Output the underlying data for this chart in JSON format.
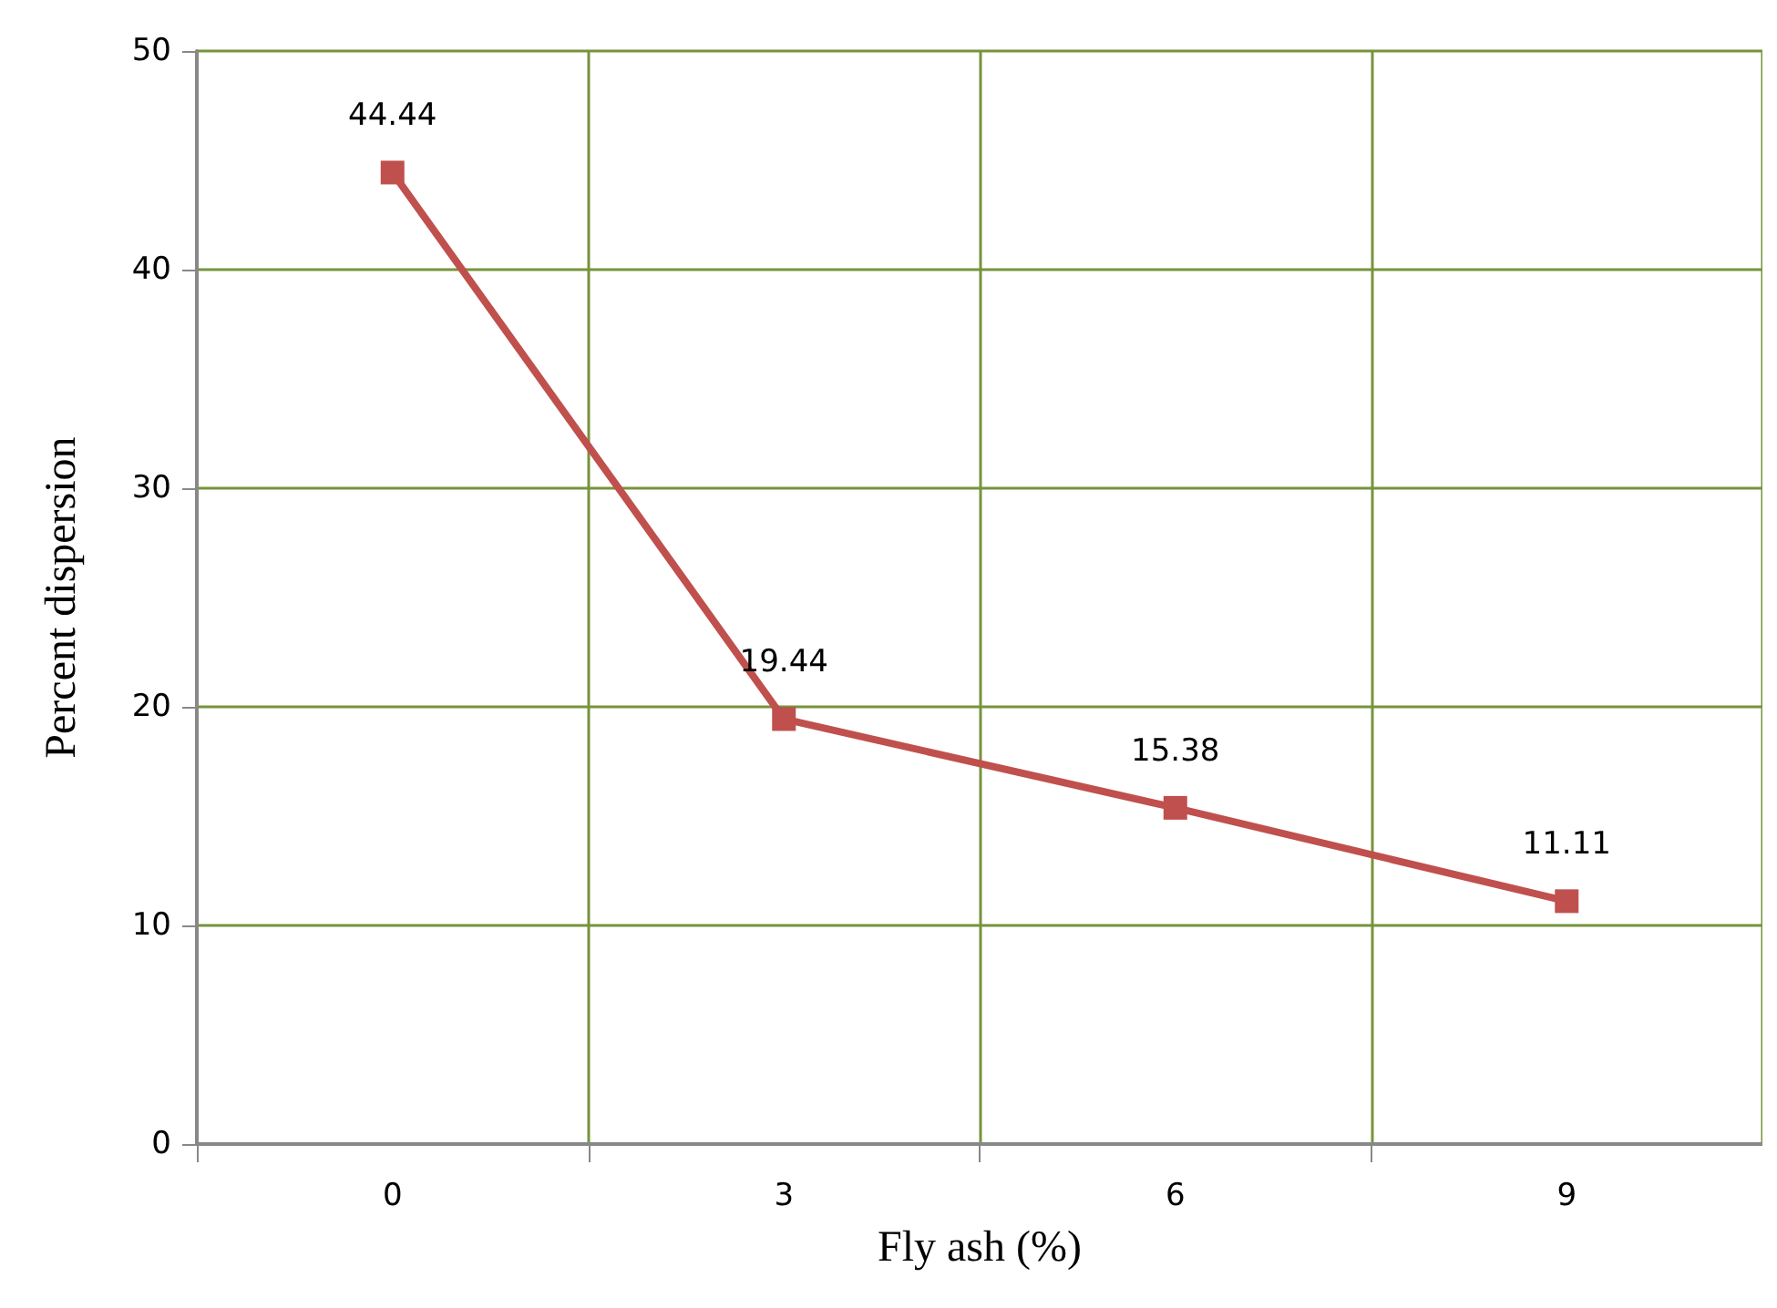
{
  "chart_data": {
    "type": "line",
    "xlabel": "Fly ash (%)",
    "ylabel": "Percent dispersion",
    "categories": [
      "0",
      "3",
      "6",
      "9"
    ],
    "series": [
      {
        "color": "#c0504d",
        "values": [
          44.44,
          19.44,
          15.38,
          11.11
        ]
      }
    ],
    "ylim": [
      0,
      50
    ],
    "yticks": [
      0,
      10,
      20,
      30,
      40,
      50
    ],
    "grid": true,
    "marker": "square",
    "line_style": "solid",
    "data_labels": true
  }
}
